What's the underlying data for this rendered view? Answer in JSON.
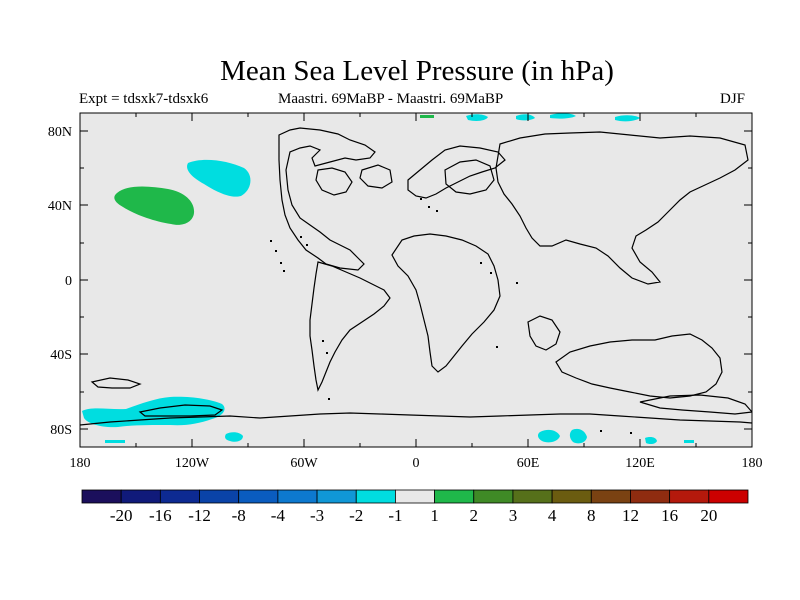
{
  "title": "Mean Sea Level Pressure (in hPa)",
  "subtitle_left": "Expt = tdsxk7-tdsxk6",
  "subtitle_center": "Maastri.  69MaBP - Maastri.  69MaBP",
  "subtitle_right": "DJF",
  "map": {
    "lat_labels": [
      "80N",
      "40N",
      "0",
      "40S",
      "80S"
    ],
    "lon_labels": [
      "180",
      "120W",
      "60W",
      "0",
      "60E",
      "120E",
      "180"
    ],
    "ocean_color": "#e8e8e8",
    "coast_color": "#000000"
  },
  "colorbar": {
    "colors": [
      "#1b0f5c",
      "#101a7a",
      "#0d2a92",
      "#0a43a8",
      "#0a5cbf",
      "#0d79cf",
      "#1097d6",
      "#00dde0",
      "#e8e8e8",
      "#1fb84a",
      "#3f8a26",
      "#56701a",
      "#6b5c10",
      "#7a4212",
      "#8f2c10",
      "#b4190c",
      "#cc0000"
    ],
    "labels": [
      "-20",
      "-16",
      "-12",
      "-8",
      "-4",
      "-3",
      "-2",
      "-1",
      "1",
      "2",
      "3",
      "4",
      "8",
      "12",
      "16",
      "20"
    ]
  }
}
